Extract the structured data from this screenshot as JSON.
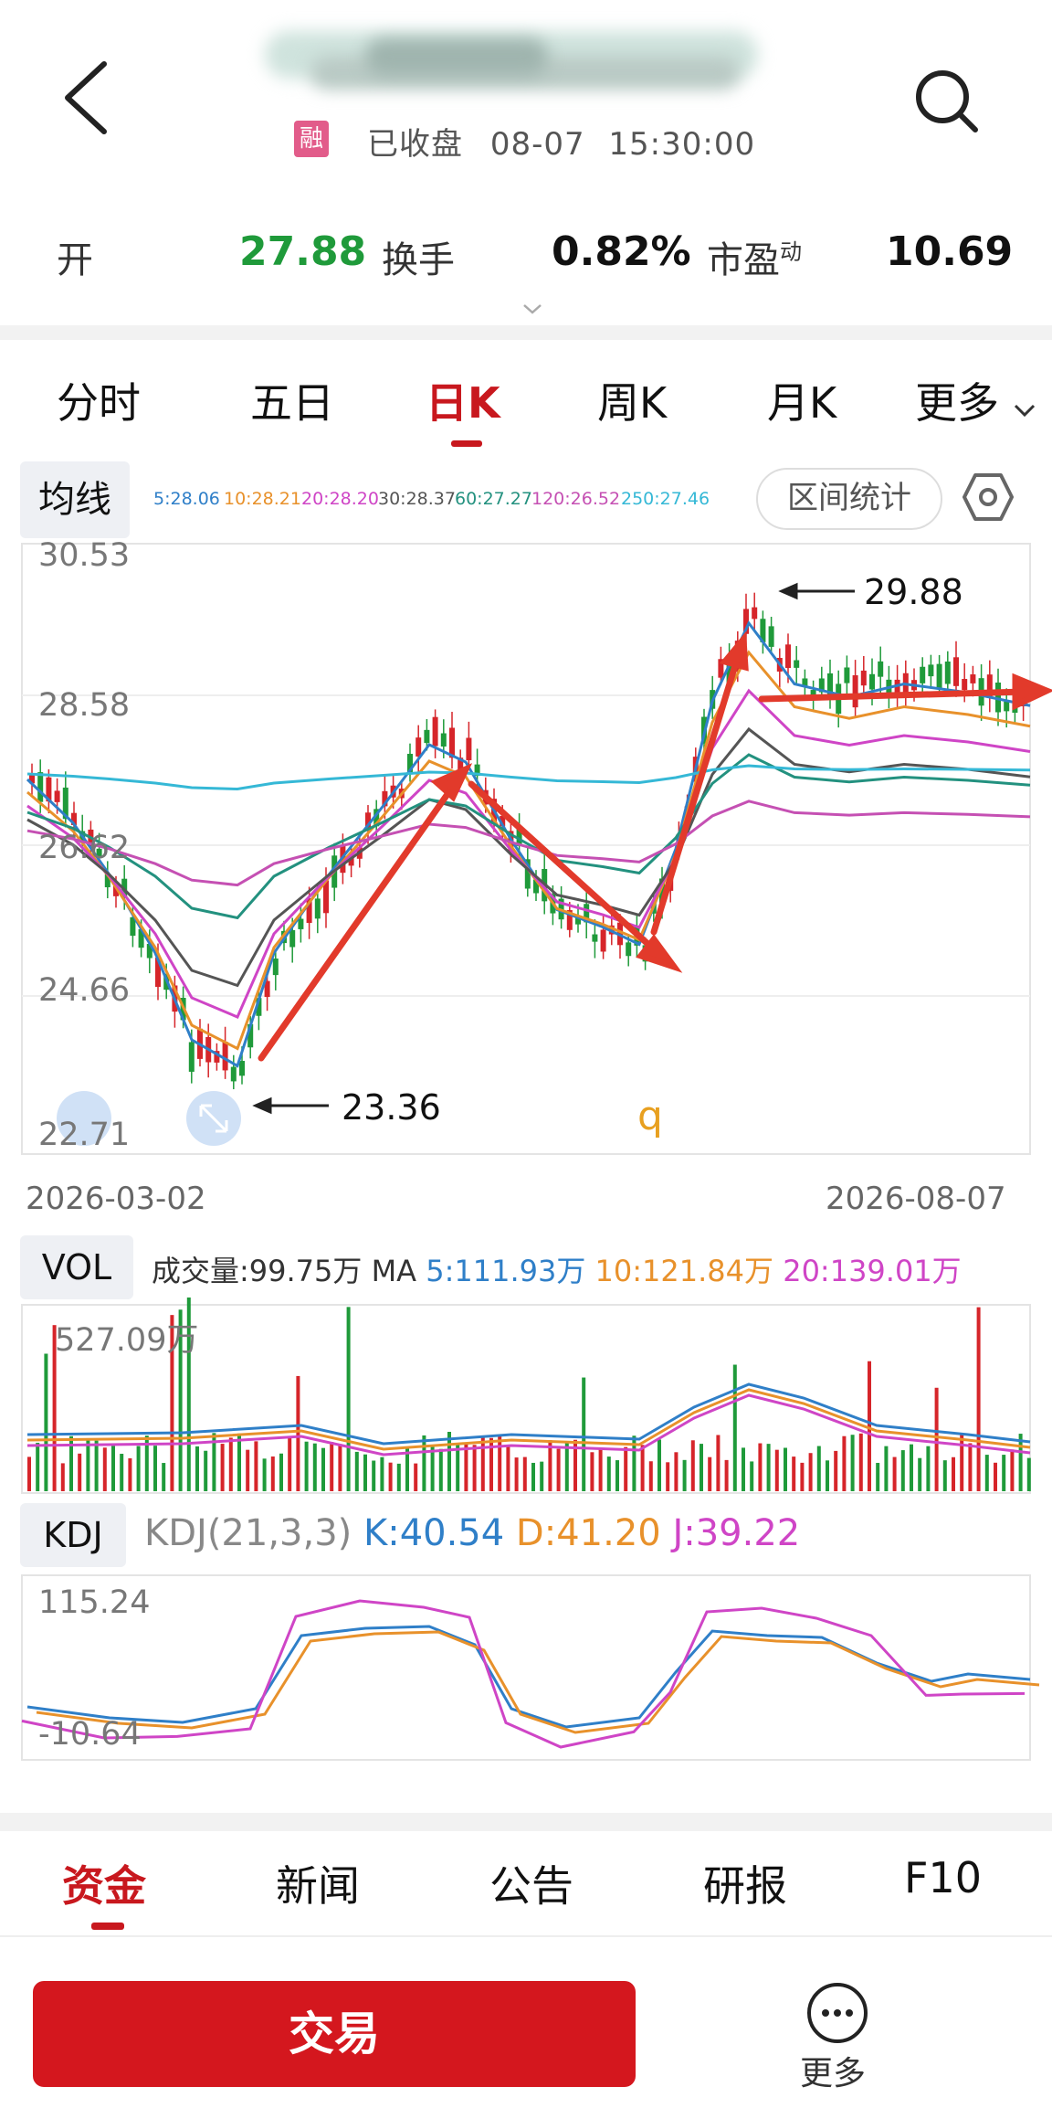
{
  "header": {
    "title_obscured": true,
    "rong_badge": "融",
    "status": "已收盘",
    "date": "08-07",
    "time": "15:30:00"
  },
  "quote": {
    "open_label": "开",
    "open_value": "27.88",
    "turnover_label": "换手",
    "turnover_value": "0.82%",
    "pe_label": "市盈",
    "pe_sup": "动",
    "pe_value": "10.69"
  },
  "period_tabs": [
    "分时",
    "五日",
    "日K",
    "周K",
    "月K",
    "更多"
  ],
  "active_period": "日K",
  "ma": {
    "label": "均线",
    "items": [
      {
        "text": "5:28.06",
        "color": "#2f7fc8"
      },
      {
        "text": "10:28.21",
        "color": "#e8912b"
      },
      {
        "text": "20:28.20",
        "color": "#cf45c6"
      },
      {
        "text": "30:28.37",
        "color": "#555555"
      },
      {
        "text": "60:27.27",
        "color": "#23917f"
      },
      {
        "text": "120:26.52",
        "color": "#c550b3"
      },
      {
        "text": "250:27.46",
        "color": "#35b8d6"
      }
    ],
    "range_button": "区间统计",
    "settings_icon": "hexagon-settings-icon"
  },
  "kline": {
    "y_labels": [
      "30.53",
      "28.58",
      "26.62",
      "24.66",
      "22.71"
    ],
    "start_date": "2026-03-02",
    "end_date": "2026-08-07",
    "high_annotation": "29.88",
    "low_annotation": "23.36",
    "watermark_char": "q"
  },
  "vol": {
    "label": "VOL",
    "summary_prefix": "成交量:99.75万 MA",
    "ma5": "5:111.93万",
    "ma10": "10:121.84万",
    "ma20": "20:139.01万",
    "max_label": "527.09万"
  },
  "kdj": {
    "label": "KDJ",
    "params": "KDJ(21,3,3)",
    "k": "K:40.54",
    "d": "D:41.20",
    "j": "J:39.22",
    "max_label": "115.24",
    "min_label": "-10.64"
  },
  "bottom_tabs": [
    "资金",
    "新闻",
    "公告",
    "研报",
    "F10"
  ],
  "active_bottom_tab": "资金",
  "trade_button": "交易",
  "more_label": "更多",
  "colors": {
    "up_red": "#d6252a",
    "down_green": "#1f9a3a",
    "accent_red": "#c8181e",
    "k_line": "#2f7fc8",
    "d_line": "#e8912b",
    "j_line": "#cf45c6",
    "annotation_arrow": "#e23a2b"
  }
}
